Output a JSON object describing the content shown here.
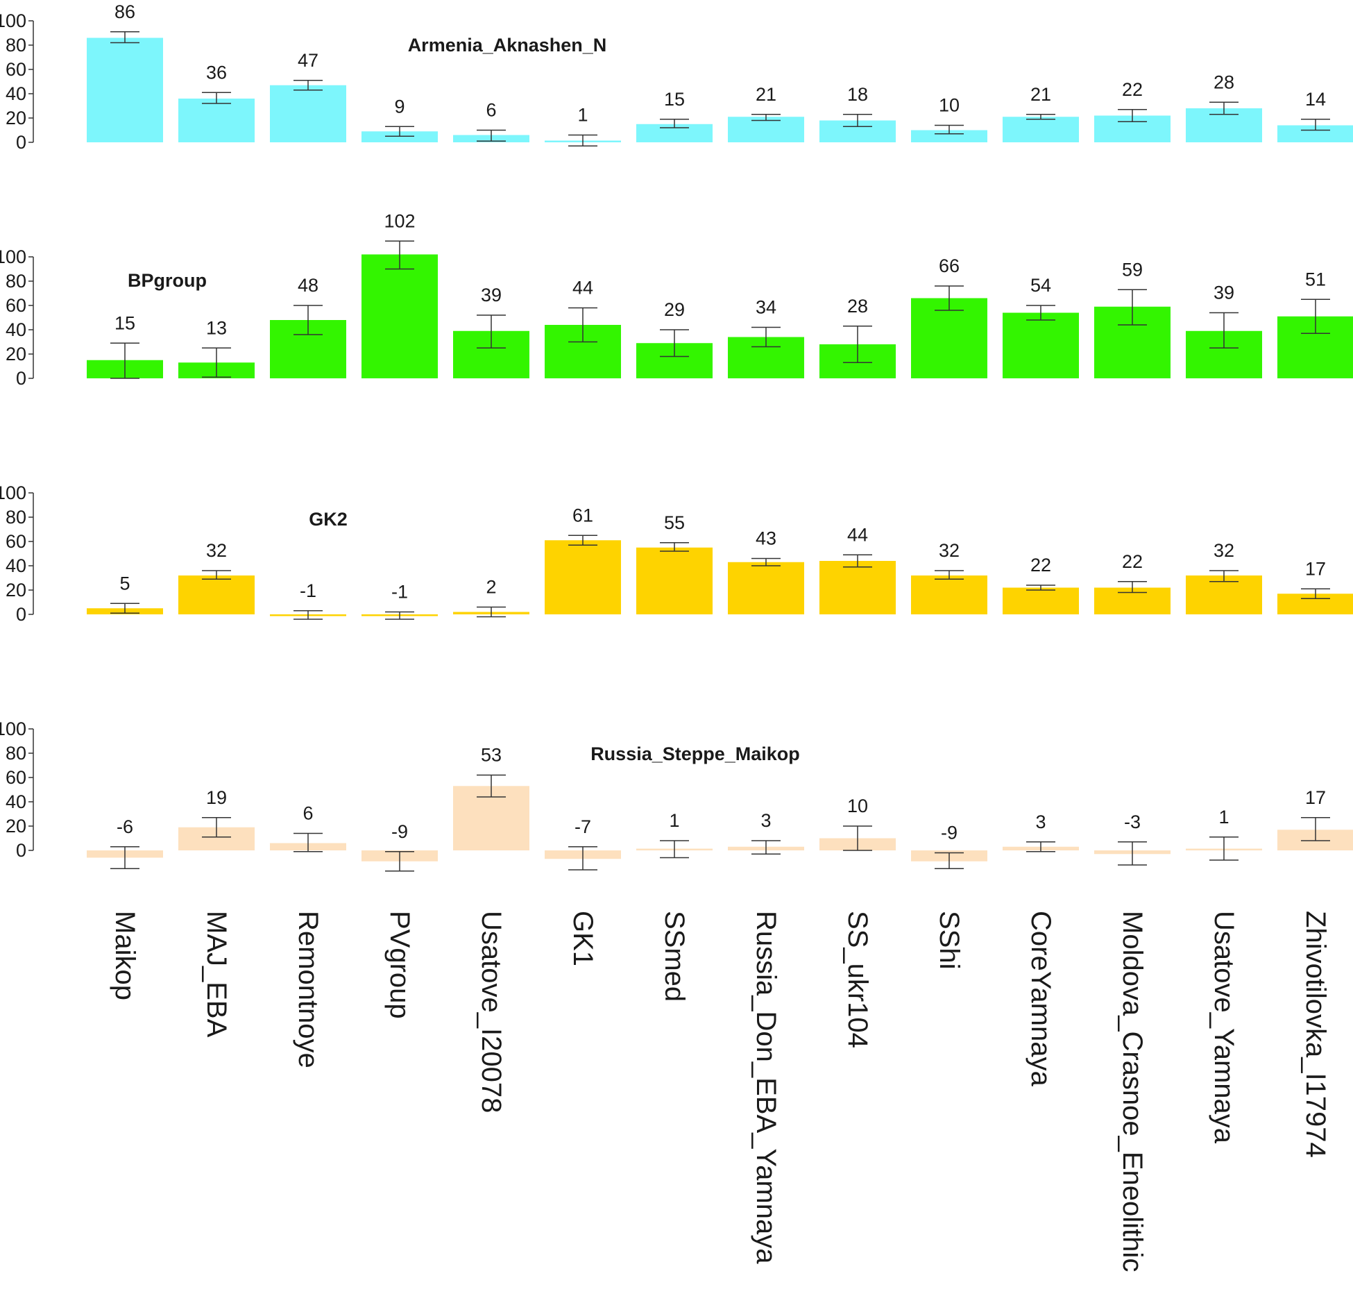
{
  "chart_data": {
    "type": "bar",
    "layout": "stacked-panels",
    "categories": [
      "Maikop",
      "MAJ_EBA",
      "Remontnoye",
      "PVgroup",
      "Usatove_I20078",
      "GK1",
      "SSmed",
      "Russia_Don_EBA_Yamnaya",
      "SS_ukr104",
      "SShi",
      "CoreYamnaya",
      "Moldova_Crasnoe_Eneolithic",
      "Usatove_Yamnaya",
      "Zhivotilovka_I17974"
    ],
    "ylim": [
      0,
      100
    ],
    "yticks": [
      "0",
      "20",
      "40",
      "60",
      "80",
      "100"
    ],
    "series": [
      {
        "name": "Armenia_Aknashen_N",
        "color": "#7df6fc",
        "values": [
          86,
          36,
          47,
          9,
          6,
          1,
          15,
          21,
          18,
          10,
          21,
          22,
          28,
          14
        ],
        "labels": [
          "86",
          "36",
          "47",
          "9",
          "6",
          "1",
          "15",
          "21",
          "18",
          "10",
          "21",
          "22",
          "28",
          "14"
        ],
        "err_low": [
          82,
          32,
          43,
          5,
          1,
          -3,
          12,
          18,
          13,
          7,
          19,
          17,
          23,
          10
        ],
        "err_high": [
          91,
          41,
          51,
          13,
          10,
          6,
          19,
          23,
          23,
          14,
          23,
          27,
          33,
          19
        ]
      },
      {
        "name": "BPgroup",
        "color": "#33f500",
        "values": [
          15,
          13,
          48,
          102,
          39,
          44,
          29,
          34,
          28,
          66,
          54,
          59,
          39,
          51
        ],
        "labels": [
          "15",
          "13",
          "48",
          "102",
          "39",
          "44",
          "29",
          "34",
          "28",
          "66",
          "54",
          "59",
          "39",
          "51"
        ],
        "err_low": [
          0,
          1,
          36,
          90,
          25,
          30,
          18,
          26,
          13,
          56,
          48,
          44,
          25,
          37
        ],
        "err_high": [
          29,
          25,
          60,
          113,
          52,
          58,
          40,
          42,
          43,
          76,
          60,
          73,
          54,
          65
        ]
      },
      {
        "name": "GK2",
        "color": "#fed300",
        "values": [
          5,
          32,
          -1,
          -1,
          2,
          61,
          55,
          43,
          44,
          32,
          22,
          22,
          32,
          17
        ],
        "labels": [
          "5",
          "32",
          "-1",
          "-1",
          "2",
          "61",
          "55",
          "43",
          "44",
          "32",
          "22",
          "22",
          "32",
          "17"
        ],
        "err_low": [
          1,
          29,
          -4,
          -4,
          -2,
          57,
          52,
          40,
          39,
          29,
          20,
          18,
          27,
          13
        ],
        "err_high": [
          9,
          36,
          3,
          2,
          6,
          65,
          59,
          46,
          49,
          36,
          24,
          27,
          36,
          21
        ]
      },
      {
        "name": "Russia_Steppe_Maikop",
        "color": "#fde0be",
        "values": [
          -6,
          19,
          6,
          -9,
          53,
          -7,
          1,
          3,
          10,
          -9,
          3,
          -3,
          1,
          17
        ],
        "labels": [
          "-6",
          "19",
          "6",
          "-9",
          "53",
          "-7",
          "1",
          "3",
          "10",
          "-9",
          "3",
          "-3",
          "1",
          "17"
        ],
        "err_low": [
          -15,
          11,
          -1,
          -17,
          44,
          -16,
          -6,
          -3,
          0,
          -15,
          -1,
          -12,
          -8,
          8
        ],
        "err_high": [
          3,
          27,
          14,
          -1,
          62,
          3,
          8,
          8,
          20,
          -2,
          7,
          7,
          11,
          27
        ]
      }
    ],
    "grid": false,
    "legend": "none"
  }
}
